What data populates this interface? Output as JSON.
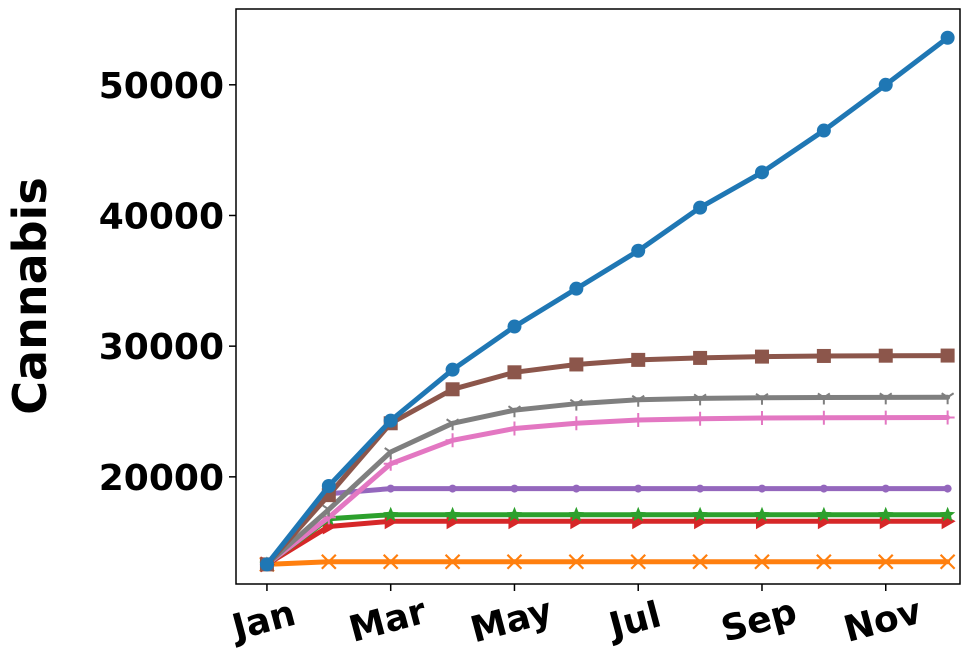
{
  "chart_data": {
    "type": "line",
    "ylabel": "Cannabis",
    "xlabel": "",
    "title": "",
    "x": [
      1,
      2,
      3,
      4,
      5,
      6,
      7,
      8,
      9,
      10,
      11,
      12
    ],
    "xticks": [
      1,
      3,
      5,
      7,
      9,
      11
    ],
    "xtick_labels": [
      "Jan",
      "Mar",
      "May",
      "Jul",
      "Sep",
      "Nov"
    ],
    "xlim": [
      0.5,
      12.2
    ],
    "ylim": [
      11800,
      55800
    ],
    "yticks": [
      20000,
      30000,
      40000,
      50000
    ],
    "ytick_labels": [
      "20000",
      "30000",
      "40000",
      "50000"
    ],
    "grid": false,
    "series": [
      {
        "color": "#1f77b4",
        "marker": "circle",
        "values": [
          13300,
          19300,
          24300,
          28200,
          31500,
          34400,
          37300,
          40600,
          43300,
          46500,
          50000,
          53600
        ]
      },
      {
        "color": "#8c564b",
        "marker": "square",
        "values": [
          13300,
          18600,
          24100,
          26700,
          28000,
          28600,
          28950,
          29100,
          29200,
          29250,
          29270,
          29280
        ]
      },
      {
        "color": "#7f7f7f",
        "marker": "tri_down",
        "values": [
          13300,
          17500,
          21900,
          24100,
          25100,
          25600,
          25900,
          26000,
          26050,
          26070,
          26080,
          26090
        ]
      },
      {
        "color": "#e377c2",
        "marker": "plus",
        "values": [
          13300,
          16900,
          21000,
          22800,
          23700,
          24100,
          24350,
          24450,
          24500,
          24520,
          24530,
          24540
        ]
      },
      {
        "color": "#9467bd",
        "marker": "point",
        "values": [
          13300,
          18700,
          19100,
          19100,
          19100,
          19100,
          19100,
          19100,
          19100,
          19100,
          19100,
          19100
        ]
      },
      {
        "color": "#2ca02c",
        "marker": "star",
        "values": [
          13300,
          16800,
          17100,
          17100,
          17100,
          17100,
          17100,
          17100,
          17100,
          17100,
          17100,
          17100
        ]
      },
      {
        "color": "#d62728",
        "marker": "triangle_right",
        "values": [
          13300,
          16200,
          16600,
          16600,
          16600,
          16600,
          16600,
          16600,
          16600,
          16600,
          16600,
          16600
        ]
      },
      {
        "color": "#ff7f0e",
        "marker": "x",
        "values": [
          13300,
          13500,
          13500,
          13500,
          13500,
          13500,
          13500,
          13500,
          13500,
          13500,
          13500,
          13500
        ]
      }
    ]
  }
}
